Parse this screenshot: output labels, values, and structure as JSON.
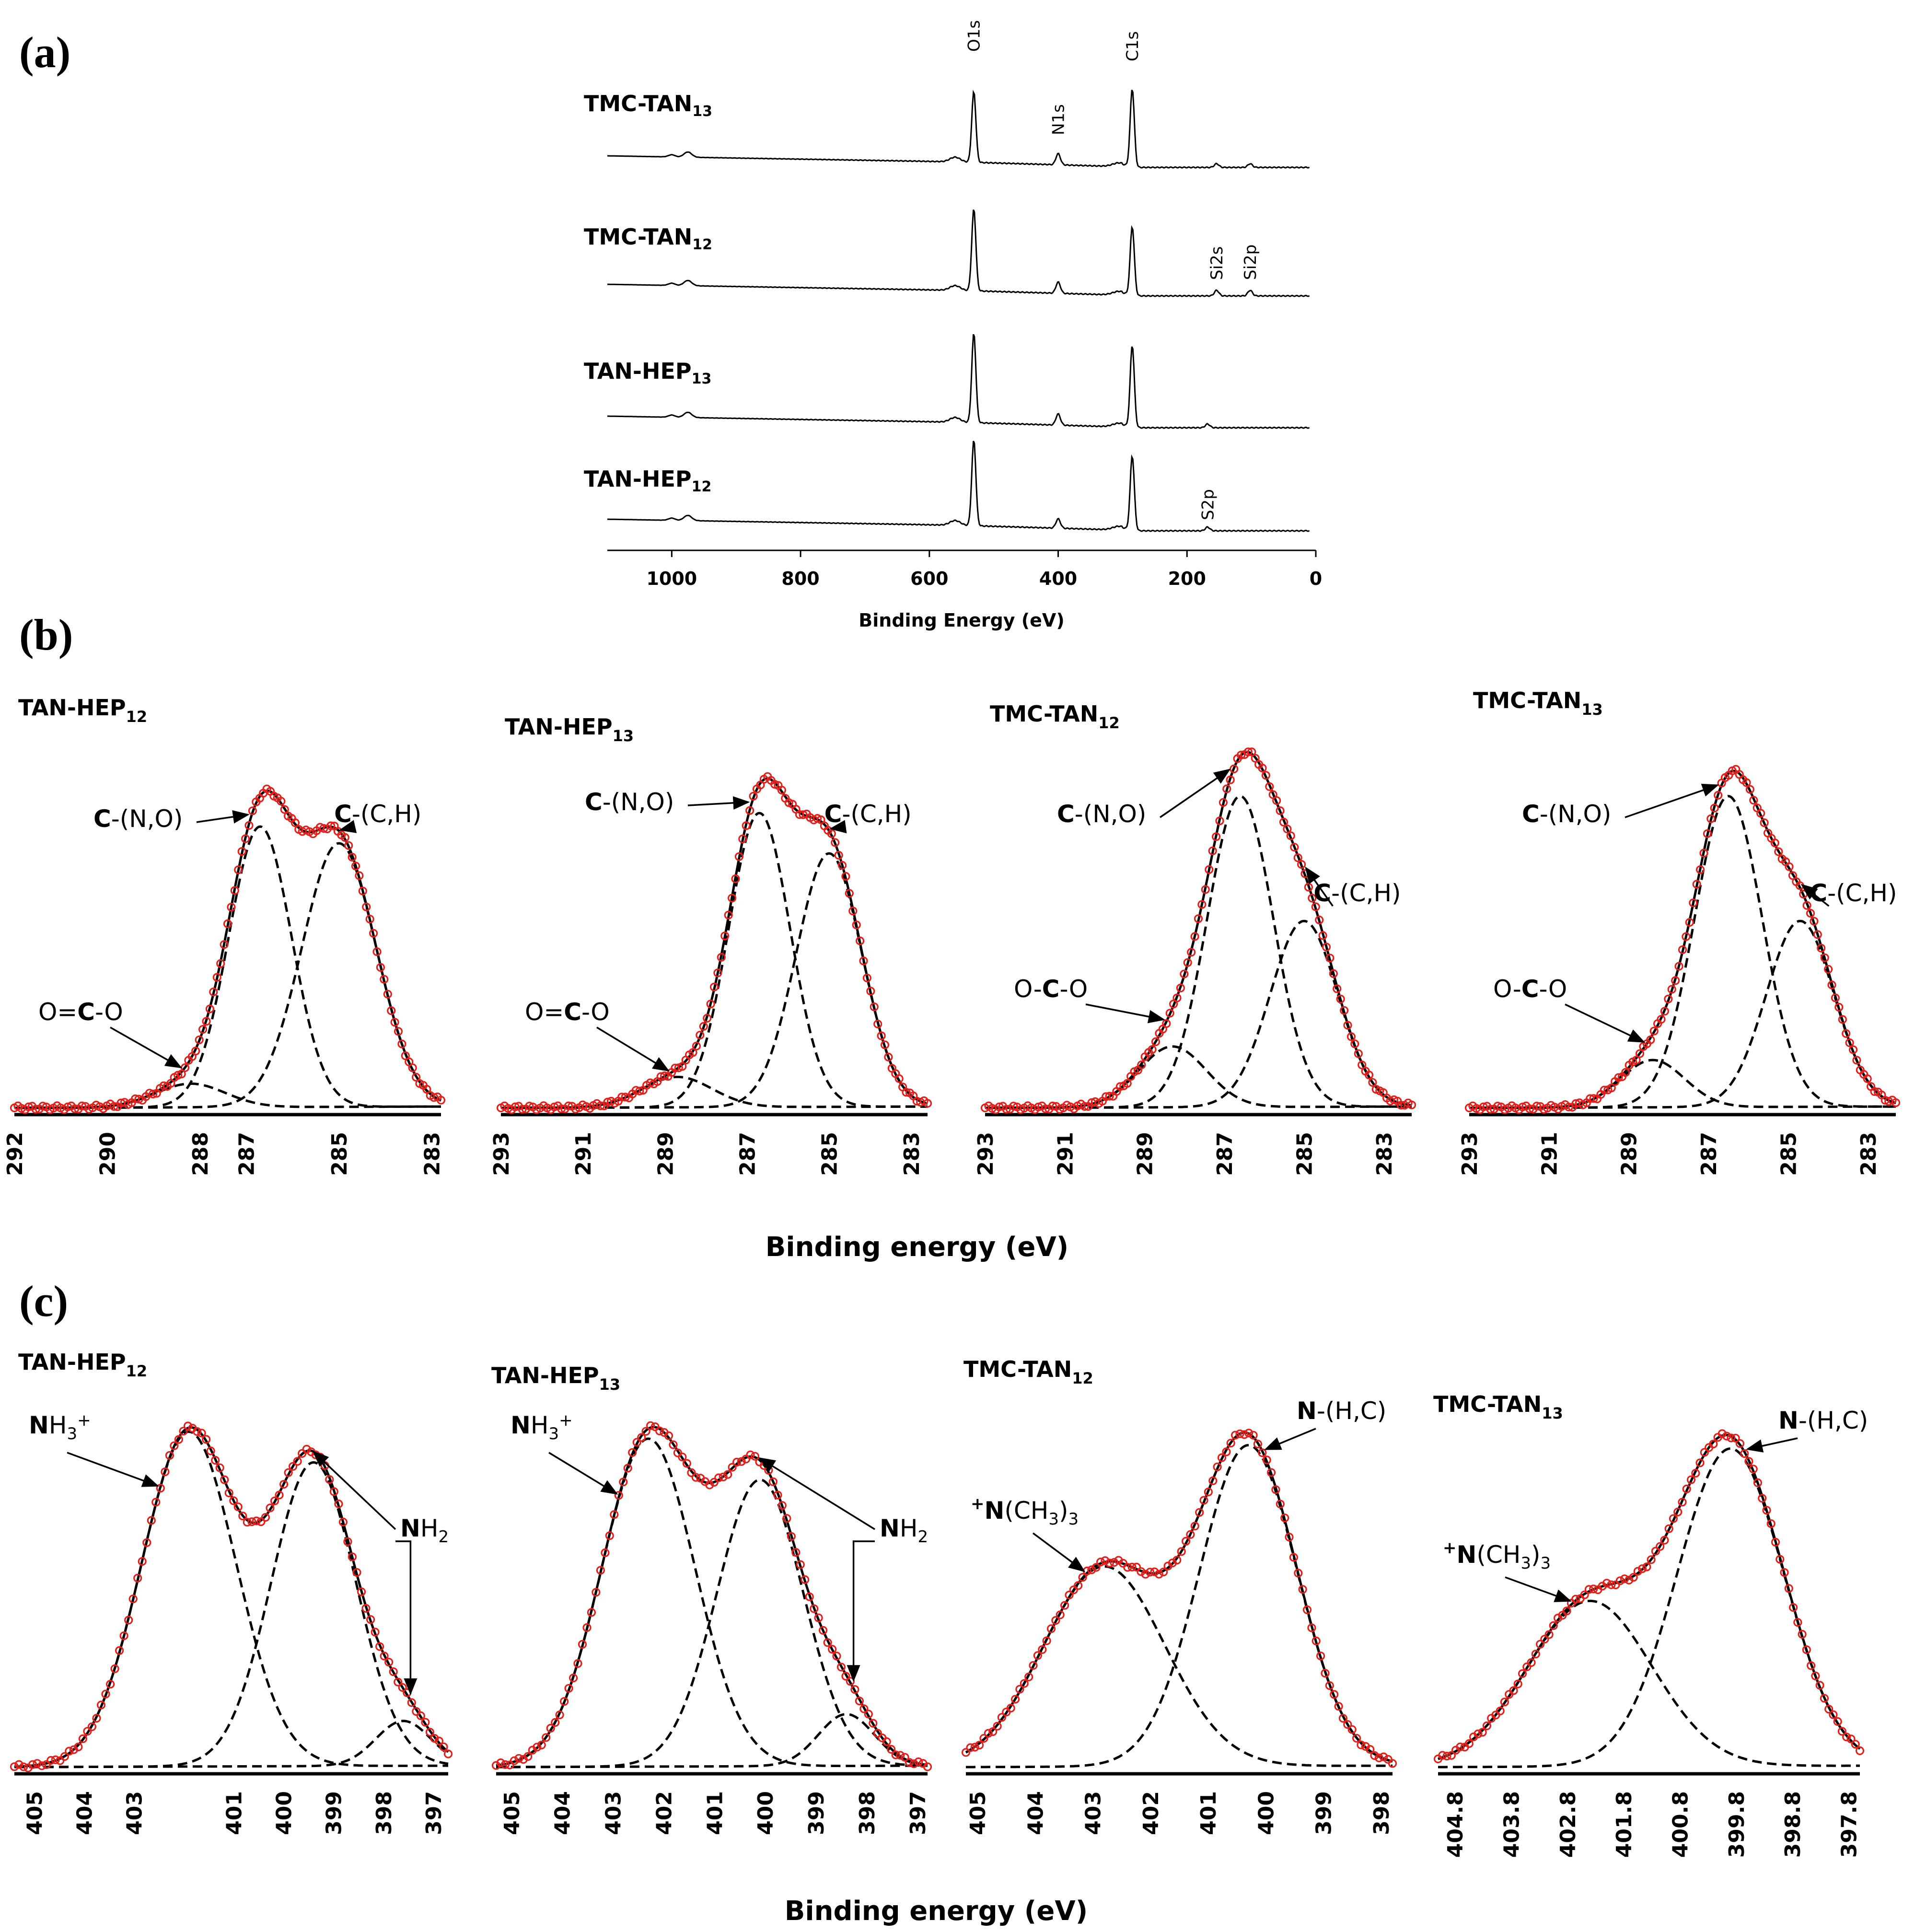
{
  "panels": {
    "a": "(a)",
    "b": "(b)",
    "c": "(c)"
  },
  "survey": {
    "xlabel": "Binding Energy (eV)",
    "xticks": [
      "1000",
      "800",
      "600",
      "400",
      "200",
      "0"
    ],
    "xlim": [
      1100,
      0
    ],
    "peak_labels": {
      "O1s": "O1s",
      "C1s": "C1s",
      "N1s": "N1s",
      "Si2s": "Si2s",
      "Si2p": "Si2p",
      "S2p": "S2p"
    },
    "spectra": [
      {
        "base": "TMC-TAN",
        "sub": "13",
        "peaks": [
          {
            "be": 531,
            "h": 38
          },
          {
            "be": 400,
            "h": 6
          },
          {
            "be": 285,
            "h": 42
          },
          {
            "be": 154,
            "h": 2
          },
          {
            "be": 102,
            "h": 2
          }
        ]
      },
      {
        "base": "TMC-TAN",
        "sub": "12",
        "peaks": [
          {
            "be": 531,
            "h": 44
          },
          {
            "be": 400,
            "h": 6
          },
          {
            "be": 285,
            "h": 37
          },
          {
            "be": 154,
            "h": 3
          },
          {
            "be": 102,
            "h": 3
          }
        ]
      },
      {
        "base": "TAN-HEP",
        "sub": "13",
        "peaks": [
          {
            "be": 531,
            "h": 48
          },
          {
            "be": 400,
            "h": 6
          },
          {
            "be": 285,
            "h": 44
          },
          {
            "be": 168,
            "h": 2
          }
        ]
      },
      {
        "base": "TAN-HEP",
        "sub": "12",
        "peaks": [
          {
            "be": 531,
            "h": 46
          },
          {
            "be": 400,
            "h": 5
          },
          {
            "be": 285,
            "h": 40
          },
          {
            "be": 168,
            "h": 2
          }
        ]
      }
    ]
  },
  "chart_data": [
    {
      "type": "line",
      "title": {
        "base": "TAN-HEP",
        "sub": "12"
      },
      "xlabel": "Binding energy (eV)",
      "xlim": [
        292,
        282.8
      ],
      "xticks": [
        "292",
        "290",
        "288",
        "287",
        "285",
        "283"
      ],
      "series": [
        {
          "label": "C-(C,H)",
          "bold": "C",
          "rest": "-(C,H)",
          "center": 285.0,
          "height": 0.78,
          "sigma": 0.8
        },
        {
          "label": "C-(N,O)",
          "bold": "C",
          "rest": "-(N,O)",
          "center": 286.7,
          "height": 0.83,
          "sigma": 0.68
        },
        {
          "label": "O=C-O",
          "pre": "O=",
          "bold": "C",
          "rest": "-O",
          "center": 288.2,
          "height": 0.07,
          "sigma": 0.75
        }
      ]
    },
    {
      "type": "line",
      "title": {
        "base": "TAN-HEP",
        "sub": "13"
      },
      "xlabel": "Binding energy (eV)",
      "xlim": [
        293,
        282.6
      ],
      "xticks": [
        "293",
        "291",
        "289",
        "287",
        "285",
        "283"
      ],
      "series": [
        {
          "label": "C-(C,H)",
          "bold": "C",
          "rest": "-(C,H)",
          "center": 285.0,
          "height": 0.75,
          "sigma": 0.8
        },
        {
          "label": "C-(N,O)",
          "bold": "C",
          "rest": "-(N,O)",
          "center": 286.7,
          "height": 0.87,
          "sigma": 0.75
        },
        {
          "label": "O=C-O",
          "pre": "O=",
          "bold": "C",
          "rest": "-O",
          "center": 288.7,
          "height": 0.09,
          "sigma": 0.85
        }
      ]
    },
    {
      "type": "line",
      "title": {
        "base": "TMC-TAN",
        "sub": "12"
      },
      "xlabel": "Binding energy (eV)",
      "xlim": [
        293,
        282.3
      ],
      "xticks": [
        "293",
        "291",
        "289",
        "287",
        "285",
        "283"
      ],
      "series": [
        {
          "label": "C-(C,H)",
          "bold": "C",
          "rest": "-(C,H)",
          "center": 285.0,
          "height": 0.55,
          "sigma": 0.85
        },
        {
          "label": "C-(N,O)",
          "bold": "C",
          "rest": "-(N,O)",
          "center": 286.6,
          "height": 0.92,
          "sigma": 0.83
        },
        {
          "label": "O-C-O",
          "pre": "O-",
          "bold": "C",
          "rest": "-O",
          "center": 288.3,
          "height": 0.18,
          "sigma": 0.85
        }
      ]
    },
    {
      "type": "line",
      "title": {
        "base": "TMC-TAN",
        "sub": "13"
      },
      "xlabel": "Binding energy (eV)",
      "xlim": [
        293,
        282.3
      ],
      "xticks": [
        "293",
        "291",
        "289",
        "287",
        "285",
        "283"
      ],
      "series": [
        {
          "label": "C-(C,H)",
          "bold": "C",
          "rest": "-(C,H)",
          "center": 284.7,
          "height": 0.55,
          "sigma": 0.85
        },
        {
          "label": "C-(N,O)",
          "bold": "C",
          "rest": "-(N,O)",
          "center": 286.5,
          "height": 0.92,
          "sigma": 0.85
        },
        {
          "label": "O-C-O",
          "pre": "O-",
          "bold": "C",
          "rest": "-O",
          "center": 288.4,
          "height": 0.14,
          "sigma": 0.8
        }
      ]
    },
    {
      "type": "line",
      "title": {
        "base": "TAN-HEP",
        "sub": "12"
      },
      "xlabel": "Binding energy (eV)",
      "xlim": [
        405.4,
        396.7
      ],
      "xticks": [
        "405",
        "404",
        "403",
        "401",
        "400",
        "399",
        "398",
        "397"
      ],
      "series": [
        {
          "label": "NH3+",
          "kind": "nh3",
          "center": 401.9,
          "height": 0.97,
          "sigma": 0.95
        },
        {
          "label": "NH2",
          "kind": "nh2",
          "center": 399.4,
          "height": 0.88,
          "sigma": 0.85
        },
        {
          "label": "NH2",
          "kind": "none",
          "center": 397.6,
          "height": 0.13,
          "sigma": 0.55
        }
      ]
    },
    {
      "type": "line",
      "title": {
        "base": "TAN-HEP",
        "sub": "13"
      },
      "xlabel": "Binding energy (eV)",
      "xlim": [
        405.3,
        396.8
      ],
      "xticks": [
        "405",
        "404",
        "403",
        "402",
        "401",
        "400",
        "399",
        "398",
        "397"
      ],
      "series": [
        {
          "label": "NH3+",
          "kind": "nh3",
          "center": 402.3,
          "height": 0.95,
          "sigma": 0.92
        },
        {
          "label": "NH2",
          "kind": "nh2",
          "center": 400.1,
          "height": 0.83,
          "sigma": 0.85
        },
        {
          "label": "NH2",
          "kind": "none",
          "center": 398.4,
          "height": 0.15,
          "sigma": 0.55
        }
      ]
    },
    {
      "type": "line",
      "title": {
        "base": "TMC-TAN",
        "sub": "12"
      },
      "xlabel": "Binding energy (eV)",
      "xlim": [
        405.2,
        397.8
      ],
      "xticks": [
        "405",
        "404",
        "403",
        "402",
        "401",
        "400",
        "399",
        "398"
      ],
      "series": [
        {
          "label": "N-(H,C)",
          "kind": "nhc",
          "center": 400.3,
          "height": 0.93,
          "sigma": 0.85
        },
        {
          "label": "+N(CH3)3",
          "kind": "nch3",
          "center": 402.8,
          "height": 0.58,
          "sigma": 1.05
        }
      ]
    },
    {
      "type": "line",
      "title": {
        "base": "TMC-TAN",
        "sub": "13"
      },
      "xlabel": "Binding energy (eV)",
      "xlim": [
        405.1,
        397.6
      ],
      "xticks": [
        "404.8",
        "403.8",
        "402.8",
        "401.8",
        "400.8",
        "399.8",
        "398.8",
        "397.8"
      ],
      "series": [
        {
          "label": "N-(H,C)",
          "kind": "nhc",
          "center": 399.9,
          "height": 0.92,
          "sigma": 0.95
        },
        {
          "label": "+N(CH3)3",
          "kind": "nch3",
          "center": 402.4,
          "height": 0.48,
          "sigma": 1.1
        }
      ]
    }
  ]
}
